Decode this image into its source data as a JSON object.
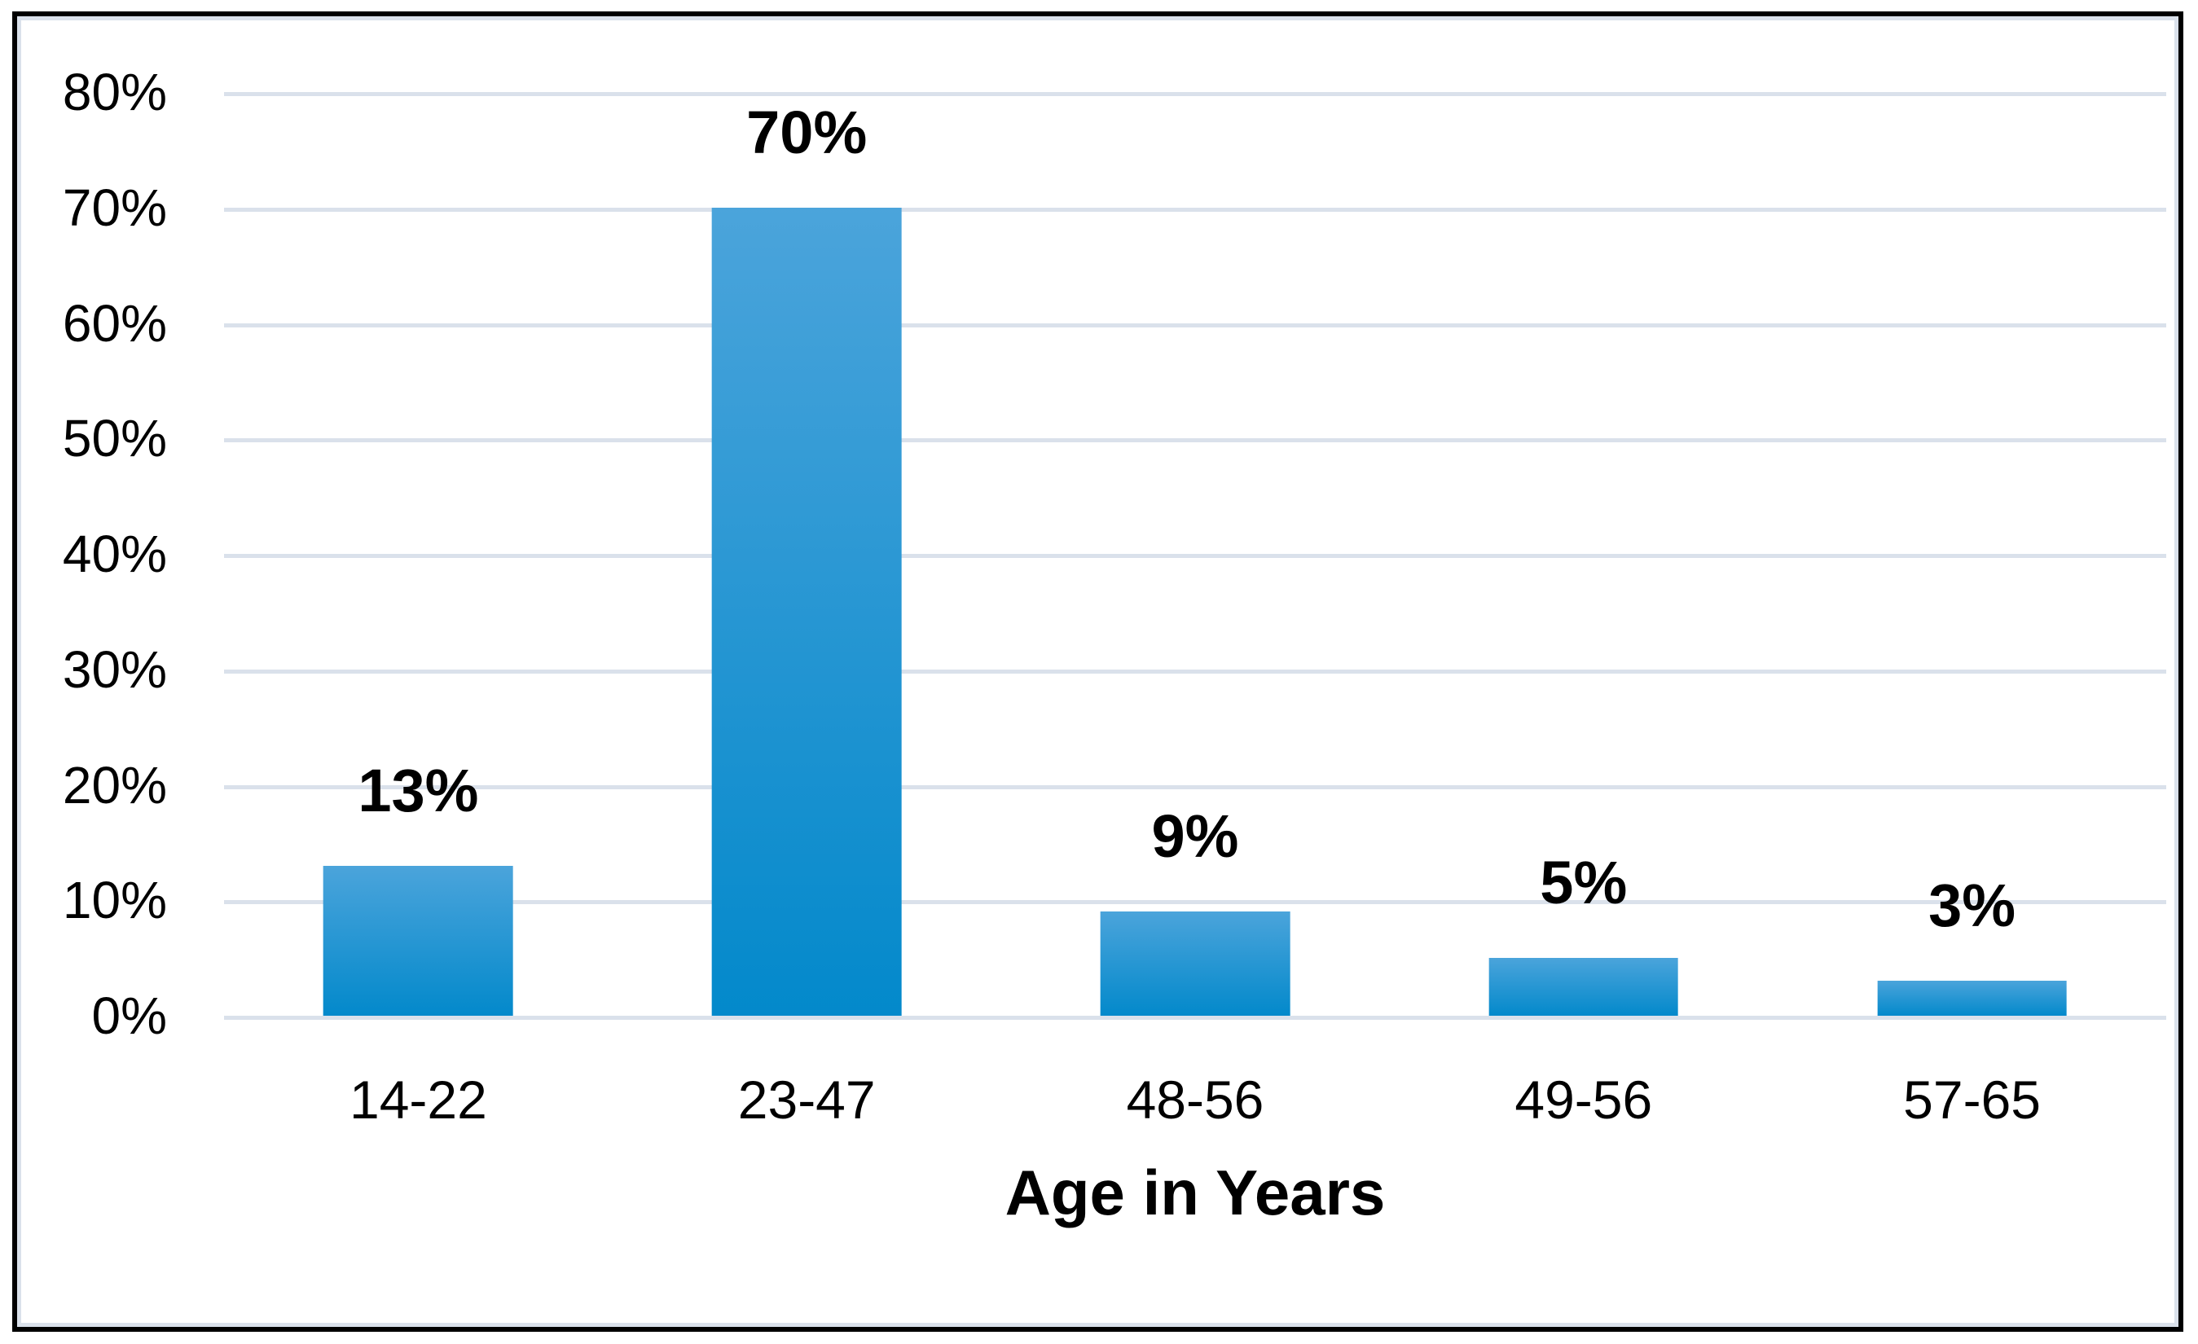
{
  "figure": {
    "background": "#FFFFFF",
    "outer_border_color": "#000000",
    "inner_border_color": "#DAE1EB"
  },
  "chart_data": {
    "type": "bar",
    "categories": [
      "14-22",
      "23-47",
      "48-56",
      "49-56",
      "57-65"
    ],
    "values": [
      13,
      70,
      9,
      5,
      3
    ],
    "data_labels": [
      "13%",
      "70%",
      "9%",
      "5%",
      "3%"
    ],
    "title": "",
    "xlabel": "Age in Years",
    "ylabel": "",
    "ylim": [
      0,
      80
    ],
    "ytick_values": [
      0,
      10,
      20,
      30,
      40,
      50,
      60,
      70,
      80
    ],
    "ytick_labels": [
      "0%",
      "10%",
      "20%",
      "30%",
      "40%",
      "50%",
      "60%",
      "70%",
      "80%"
    ],
    "grid": "horizontal",
    "legend": "none",
    "bar_gradient_top": "#4BA4DB",
    "bar_gradient_bottom": "#0389CB",
    "gridline_color": "#DAE1EB"
  }
}
